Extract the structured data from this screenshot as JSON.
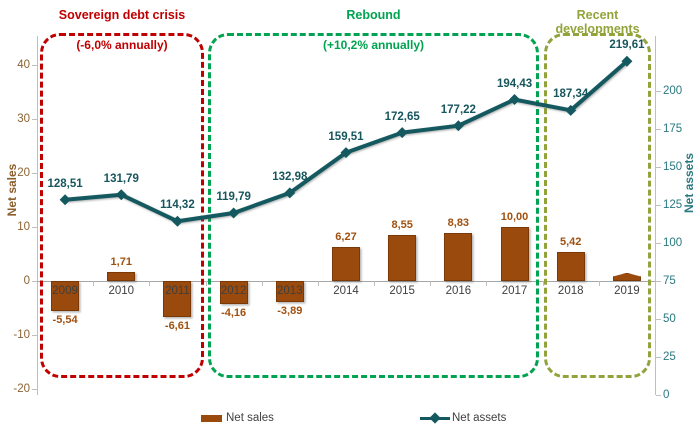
{
  "chart_data": {
    "type": "combo",
    "categories": [
      "2009",
      "2010",
      "2011",
      "2012",
      "2013",
      "2014",
      "2015",
      "2016",
      "2017",
      "2018",
      "2019"
    ],
    "series": [
      {
        "name": "Net sales",
        "type": "bar",
        "axis": "left",
        "color": "#9a4a0d",
        "values": [
          -5.54,
          1.71,
          -6.61,
          -4.16,
          -3.89,
          6.27,
          8.55,
          8.83,
          10.0,
          5.42,
          1.5
        ],
        "labels": [
          "-5,54",
          "1,71",
          "-6,61",
          "-4,16",
          "-3,89",
          "6,27",
          "8,55",
          "8,83",
          "10,00",
          "5,42",
          ""
        ]
      },
      {
        "name": "Net assets",
        "type": "line",
        "axis": "right",
        "color": "#14595f",
        "values": [
          128.51,
          131.79,
          114.32,
          119.79,
          132.98,
          159.51,
          172.65,
          177.22,
          194.43,
          187.34,
          219.61
        ],
        "labels": [
          "128,51",
          "131,79",
          "114,32",
          "119,79",
          "132,98",
          "159,51",
          "172,65",
          "177,22",
          "194,43",
          "187,34",
          "219,61"
        ]
      }
    ],
    "left_axis": {
      "title": "Net sales",
      "ticks": [
        "40",
        "30",
        "20",
        "10",
        "0",
        "-10",
        "-20"
      ],
      "min": -20,
      "max": 40
    },
    "right_axis": {
      "title": "Net assets",
      "ticks": [
        "200",
        "175",
        "150",
        "125",
        "100",
        "75",
        "50",
        "25",
        "0"
      ],
      "min": 0,
      "max": 200
    },
    "annotations": [
      {
        "label": "Sovereign debt crisis",
        "sublabel": "(-6,0% annually)",
        "color": "#c00000"
      },
      {
        "label": "Rebound",
        "sublabel": "(+10,2% annually)",
        "color": "#00a350"
      },
      {
        "label": "Recent developments",
        "sublabel": "",
        "color": "#93a33c"
      }
    ],
    "legend": [
      {
        "label": "Net sales"
      },
      {
        "label": "Net assets"
      }
    ],
    "grid": "off",
    "legend_position": "bottom"
  }
}
